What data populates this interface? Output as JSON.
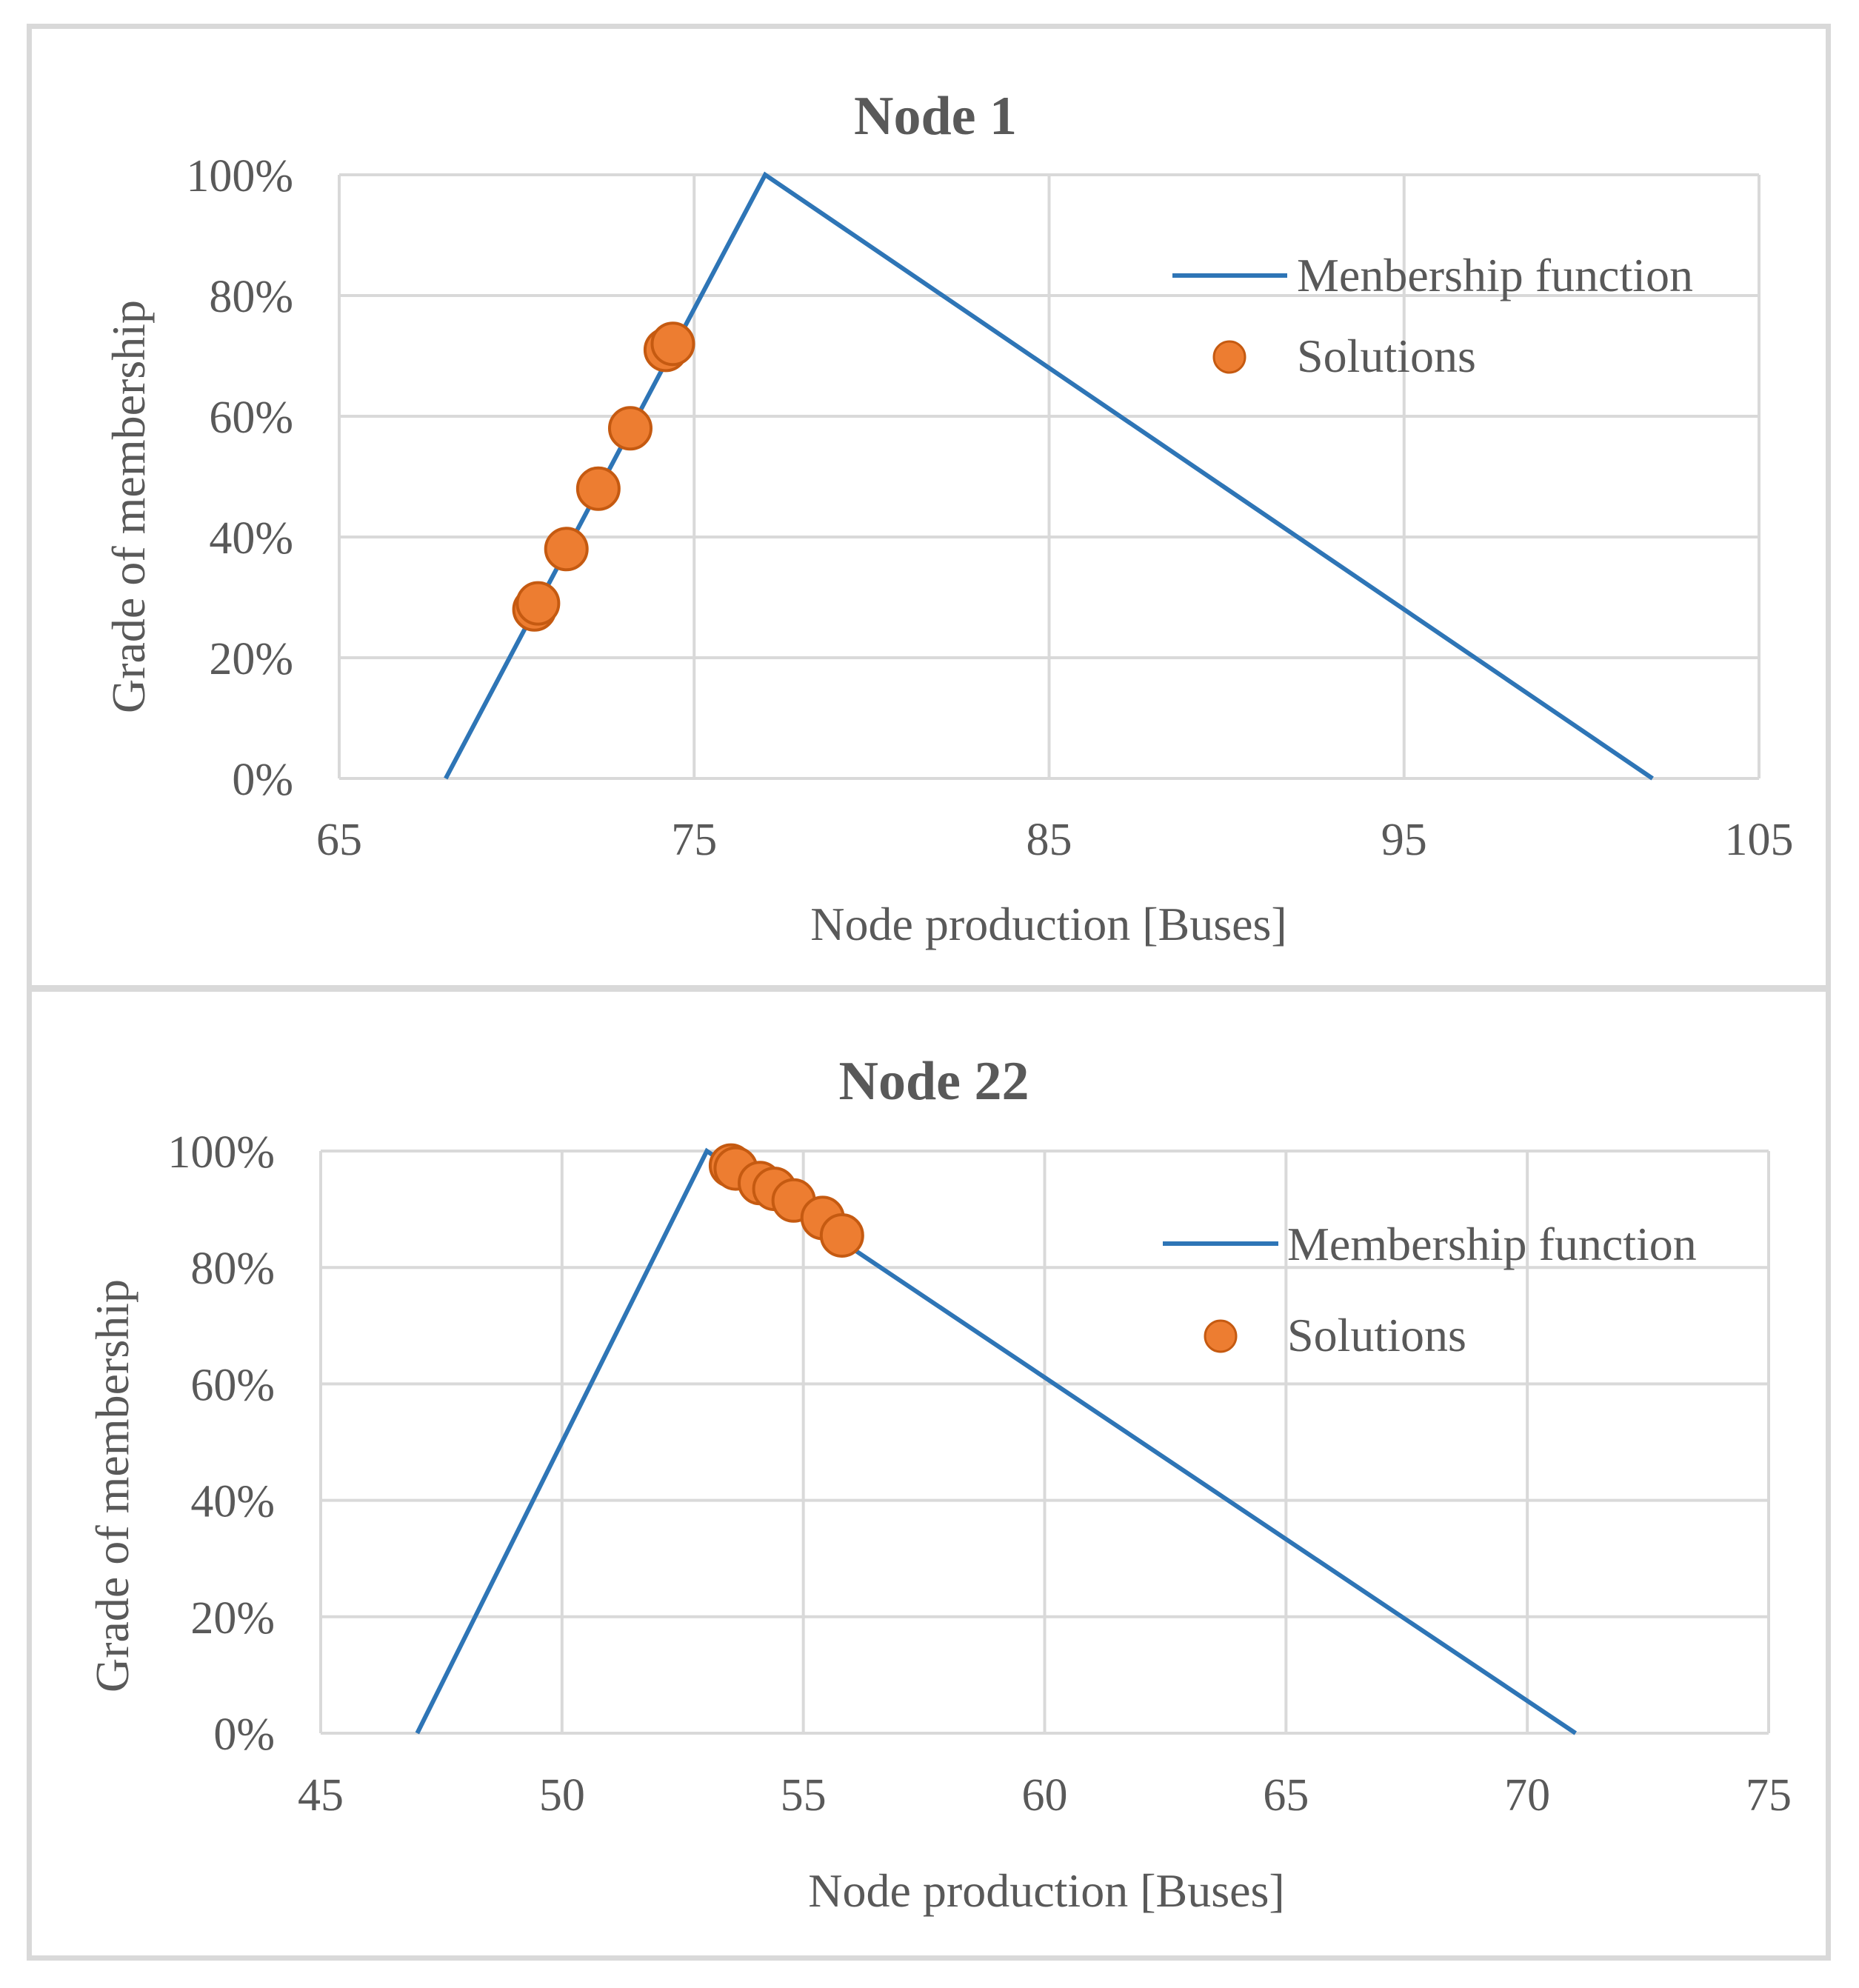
{
  "chart_data": [
    {
      "type": "line",
      "title": "Node 1",
      "xlabel": "Node production [Buses]",
      "ylabel": "Grade of membership",
      "xlim": [
        65,
        105
      ],
      "ylim": [
        0,
        1
      ],
      "xticks": [
        65,
        75,
        85,
        95,
        105
      ],
      "xtick_labels": [
        "65",
        "75",
        "85",
        "95",
        "105"
      ],
      "yticks": [
        0,
        0.2,
        0.4,
        0.6,
        0.8,
        1.0
      ],
      "ytick_labels": [
        "0%",
        "20%",
        "40%",
        "60%",
        "80%",
        "100%"
      ],
      "grid": true,
      "legend_position": "top-right",
      "series": [
        {
          "name": "Menbership function",
          "kind": "line",
          "color": "#2e75b6",
          "x": [
            68,
            77,
            102
          ],
          "y": [
            0,
            1,
            0
          ]
        },
        {
          "name": "Solutions",
          "kind": "scatter",
          "color": "#ed7d31",
          "x": [
            70.5,
            70.6,
            71.4,
            72.3,
            73.2,
            74.2,
            74.4
          ],
          "y": [
            0.28,
            0.29,
            0.38,
            0.48,
            0.58,
            0.71,
            0.72
          ]
        }
      ]
    },
    {
      "type": "line",
      "title": "Node 22",
      "xlabel": "Node production [Buses]",
      "ylabel": "Grade of membership",
      "xlim": [
        45,
        75
      ],
      "ylim": [
        0,
        1
      ],
      "xticks": [
        45,
        50,
        55,
        60,
        65,
        70,
        75
      ],
      "xtick_labels": [
        "45",
        "50",
        "55",
        "60",
        "65",
        "70",
        "75"
      ],
      "yticks": [
        0,
        0.2,
        0.4,
        0.6,
        0.8,
        1.0
      ],
      "ytick_labels": [
        "0%",
        "20%",
        "40%",
        "60%",
        "80%",
        "100%"
      ],
      "grid": true,
      "legend_position": "top-right",
      "series": [
        {
          "name": "Membership function",
          "kind": "line",
          "color": "#2e75b6",
          "x": [
            47,
            53,
            71
          ],
          "y": [
            0,
            1,
            0
          ]
        },
        {
          "name": "Solutions",
          "kind": "scatter",
          "color": "#ed7d31",
          "x": [
            53.5,
            53.6,
            54.1,
            54.4,
            54.8,
            55.4,
            55.8
          ],
          "y": [
            0.975,
            0.97,
            0.945,
            0.935,
            0.915,
            0.885,
            0.855
          ]
        }
      ]
    }
  ]
}
